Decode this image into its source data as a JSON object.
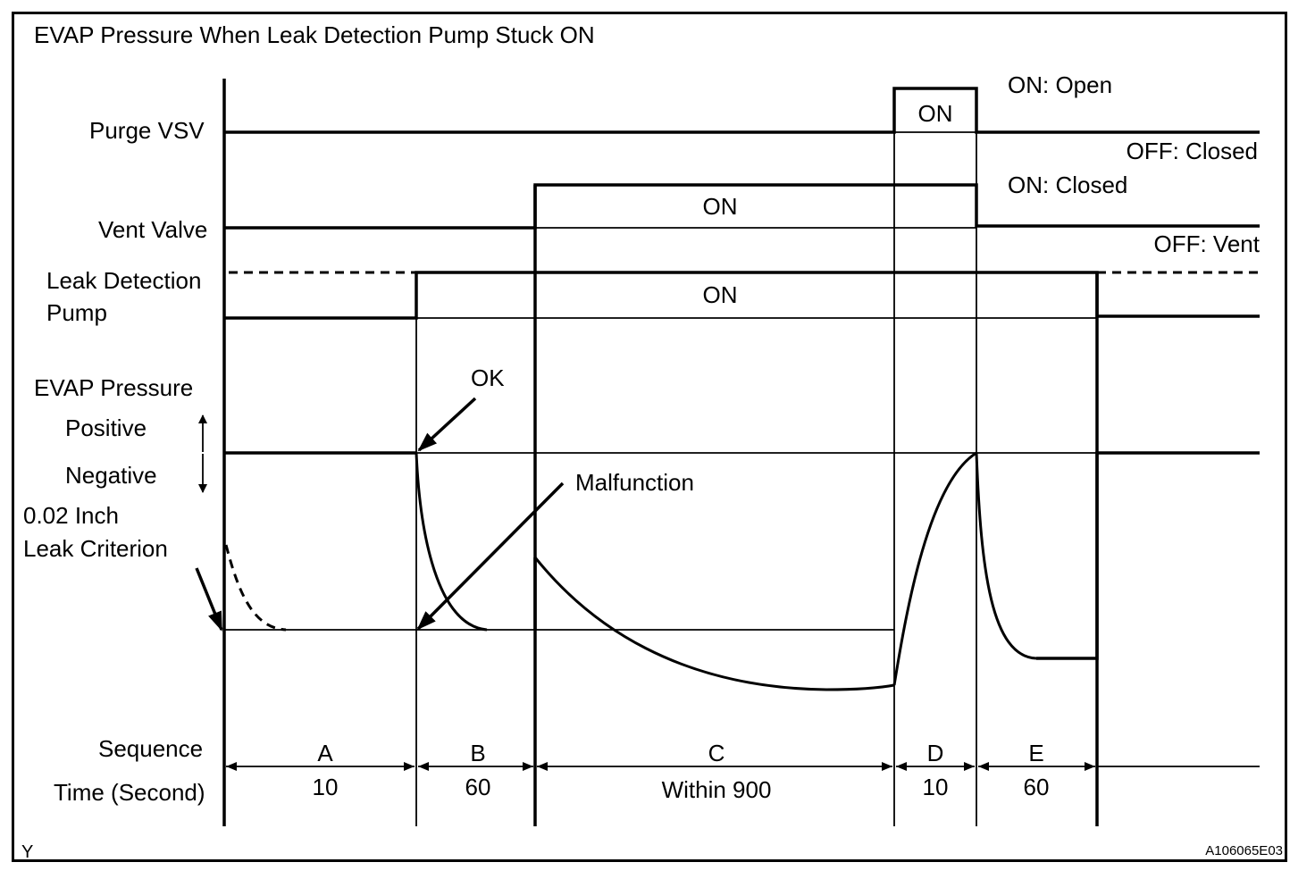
{
  "title": "EVAP Pressure When Leak Detection Pump Stuck ON",
  "signals": {
    "purge_vsv": "Purge VSV",
    "vent_valve": "Vent Valve",
    "ldp_line1": "Leak Detection",
    "ldp_line2": "Pump",
    "evap_pressure": "EVAP Pressure",
    "positive": "Positive",
    "negative": "Negative",
    "criterion_line1": "0.02 Inch",
    "criterion_line2": "Leak Criterion",
    "sequence": "Sequence",
    "time": "Time (Second)"
  },
  "states": {
    "on": "ON",
    "purge_on": "ON: Open",
    "purge_off": "OFF: Closed",
    "vent_on": "ON: Closed",
    "vent_off": "OFF: Vent"
  },
  "annotations": {
    "ok": "OK",
    "malfunction": "Malfunction"
  },
  "sequence_steps": [
    {
      "name": "A",
      "time": "10"
    },
    {
      "name": "B",
      "time": "60"
    },
    {
      "name": "C",
      "time": "Within 900"
    },
    {
      "name": "D",
      "time": "10"
    },
    {
      "name": "E",
      "time": "60"
    }
  ],
  "footer": {
    "left_mark": "Y",
    "figure_id": "A106065E03"
  }
}
